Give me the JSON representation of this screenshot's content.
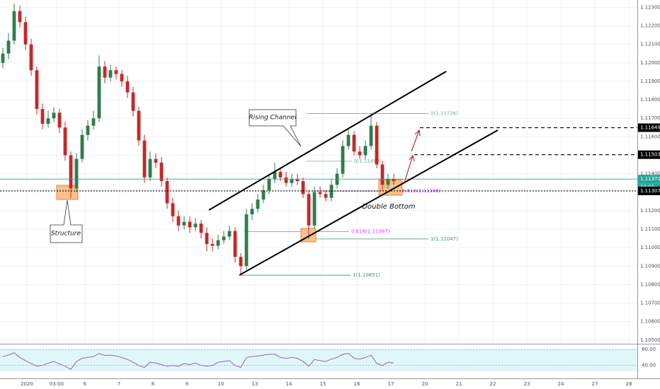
{
  "chart_data": {
    "type": "candlestick",
    "open": [
      1.12,
      1.1205,
      1.1212,
      1.1228,
      1.1222,
      1.121,
      1.1196,
      1.1175,
      1.1167,
      1.117,
      1.1173,
      1.1165,
      1.115,
      1.1132,
      1.1148,
      1.1161,
      1.1166,
      1.117,
      1.1198,
      1.1192,
      1.1196,
      1.1194,
      1.119,
      1.1184,
      1.1174,
      1.1158,
      1.1138,
      1.1148,
      1.1146,
      1.1136,
      1.1124,
      1.1117,
      1.1112,
      1.1114,
      1.1111,
      1.1113,
      1.1108,
      1.1102,
      1.1101,
      1.1104,
      1.1106,
      1.1109,
      1.1095,
      1.109,
      1.1118,
      1.1121,
      1.1126,
      1.1131,
      1.1137,
      1.1141,
      1.1138,
      1.1135,
      1.1137,
      1.1136,
      1.1129,
      1.1112,
      1.113,
      1.1129,
      1.1127,
      1.1134,
      1.114,
      1.1155,
      1.1161,
      1.1152,
      1.115,
      1.1155,
      1.1166,
      1.1145,
      1.1134,
      1.1137
    ],
    "high": [
      1.1208,
      1.1216,
      1.1232,
      1.1231,
      1.1225,
      1.1213,
      1.1198,
      1.1178,
      1.1174,
      1.1176,
      1.1175,
      1.1168,
      1.1152,
      1.1151,
      1.1164,
      1.1169,
      1.1174,
      1.1204,
      1.1201,
      1.1199,
      1.1198,
      1.1196,
      1.1193,
      1.1187,
      1.1176,
      1.1161,
      1.1152,
      1.1151,
      1.1149,
      1.1138,
      1.1127,
      1.112,
      1.1117,
      1.1117,
      1.1116,
      1.1115,
      1.1111,
      1.1105,
      1.1107,
      1.1109,
      1.1112,
      1.1111,
      1.1097,
      1.1121,
      1.1124,
      1.1129,
      1.1134,
      1.114,
      1.1146,
      1.1143,
      1.1141,
      1.114,
      1.114,
      1.1138,
      1.1131,
      1.1133,
      1.1133,
      1.1131,
      1.1137,
      1.1143,
      1.1158,
      1.1164,
      1.1163,
      1.1155,
      1.1158,
      1.11726,
      1.1168,
      1.1147,
      1.114,
      1.114
    ],
    "low": [
      1.1197,
      1.1202,
      1.121,
      1.1219,
      1.1207,
      1.1193,
      1.1172,
      1.1164,
      1.1165,
      1.1168,
      1.1162,
      1.1147,
      1.1127,
      1.113,
      1.1146,
      1.1158,
      1.1164,
      1.1168,
      1.1189,
      1.119,
      1.1191,
      1.1187,
      1.1181,
      1.1171,
      1.1155,
      1.1135,
      1.1136,
      1.1143,
      1.1133,
      1.1121,
      1.1114,
      1.1109,
      1.111,
      1.1108,
      1.1109,
      1.1105,
      1.1098,
      1.1098,
      1.1099,
      1.1102,
      1.1104,
      1.1092,
      1.10851,
      1.1088,
      1.1115,
      1.1119,
      1.1124,
      1.1129,
      1.1135,
      1.1136,
      1.1133,
      1.1133,
      1.1134,
      1.1127,
      1.11047,
      1.111,
      1.1127,
      1.1125,
      1.1125,
      1.1132,
      1.1138,
      1.1153,
      1.115,
      1.1148,
      1.1148,
      1.1153,
      1.1143,
      1.1131,
      1.1132,
      1.1134
    ],
    "close": [
      1.1205,
      1.1212,
      1.1228,
      1.1222,
      1.121,
      1.1196,
      1.1175,
      1.1167,
      1.117,
      1.1173,
      1.1165,
      1.115,
      1.1132,
      1.1148,
      1.1161,
      1.1166,
      1.117,
      1.1198,
      1.1192,
      1.1196,
      1.1194,
      1.119,
      1.1184,
      1.1174,
      1.1158,
      1.1138,
      1.1148,
      1.1146,
      1.1136,
      1.1124,
      1.1117,
      1.1112,
      1.1114,
      1.1111,
      1.1113,
      1.1108,
      1.1102,
      1.1101,
      1.1104,
      1.1106,
      1.1109,
      1.1095,
      1.109,
      1.1118,
      1.1121,
      1.1126,
      1.1131,
      1.1137,
      1.1141,
      1.1138,
      1.1135,
      1.1137,
      1.1136,
      1.1129,
      1.1112,
      1.113,
      1.1129,
      1.1127,
      1.1134,
      1.114,
      1.1155,
      1.1161,
      1.1152,
      1.115,
      1.1155,
      1.1166,
      1.1145,
      1.1134,
      1.1137,
      1.1136
    ],
    "up_color": "#2e7d4f",
    "down_color": "#c62828",
    "xlim": [
      -0.5,
      112
    ],
    "xticks": [
      {
        "value": 4.25,
        "label": "2020"
      },
      {
        "value": 9.5,
        "label": "03:00"
      },
      {
        "value": 14.5,
        "label": "6"
      },
      {
        "value": 20.5,
        "label": "7"
      },
      {
        "value": 26.5,
        "label": "8"
      },
      {
        "value": 32.5,
        "label": "9"
      },
      {
        "value": 38.5,
        "label": "10"
      },
      {
        "value": 44.5,
        "label": "13"
      },
      {
        "value": 50.5,
        "label": "14"
      },
      {
        "value": 56.5,
        "label": "15"
      },
      {
        "value": 62.5,
        "label": "16"
      },
      {
        "value": 68.5,
        "label": "17"
      },
      {
        "value": 74.5,
        "label": "20"
      },
      {
        "value": 80.5,
        "label": "21"
      },
      {
        "value": 86.5,
        "label": "22"
      },
      {
        "value": 92.5,
        "label": "23"
      },
      {
        "value": 98.5,
        "label": "24"
      },
      {
        "value": 104.5,
        "label": "27"
      },
      {
        "value": 110.5,
        "label": "28"
      }
    ],
    "ylim": [
      1.1048,
      1.1234
    ],
    "yticks": [
      {
        "value": 1.123,
        "label": "1.12300"
      },
      {
        "value": 1.122,
        "label": "1.12200"
      },
      {
        "value": 1.121,
        "label": "1.12100"
      },
      {
        "value": 1.12,
        "label": "1.12000"
      },
      {
        "value": 1.119,
        "label": "1.11900"
      },
      {
        "value": 1.118,
        "label": "1.11800"
      },
      {
        "value": 1.117,
        "label": "1.11700"
      },
      {
        "value": 1.116,
        "label": "1.11600"
      },
      {
        "value": 1.115,
        "label": "1.11500"
      },
      {
        "value": 1.114,
        "label": "1.11400"
      },
      {
        "value": 1.113,
        "label": "1.11300"
      },
      {
        "value": 1.112,
        "label": "1.11200"
      },
      {
        "value": 1.111,
        "label": "1.11100"
      },
      {
        "value": 1.11,
        "label": "1.11000"
      },
      {
        "value": 1.109,
        "label": "1.10900"
      },
      {
        "value": 1.108,
        "label": "1.10800"
      },
      {
        "value": 1.107,
        "label": "1.10700"
      },
      {
        "value": 1.106,
        "label": "1.10600"
      },
      {
        "value": 1.105,
        "label": "1.10500"
      }
    ],
    "grid": true,
    "levels": [
      {
        "value": 1.11649,
        "label": "1.11649",
        "style": "dashed",
        "color": "#000000"
      },
      {
        "value": 1.11503,
        "label": "1.11503",
        "style": "dashed",
        "color": "#000000"
      },
      {
        "value": 1.11371,
        "label": "1.11371",
        "style": "solid",
        "color": "#26a69a",
        "sublabel": "19:01"
      },
      {
        "value": 1.11307,
        "label": "1.11307",
        "style": "dotted",
        "color": "#000000"
      }
    ],
    "fibs": [
      {
        "value": 1.11726,
        "label": "0(1.11726)",
        "color": "#7fa89a"
      },
      {
        "value": 1.11468,
        "label": "0(1.11468)",
        "color": "#7fa89a"
      },
      {
        "value": 1.11087,
        "label": "0.618(1.11087)",
        "color": "#e040fb"
      },
      {
        "value": 1.11047,
        "label": "1(1.11047)",
        "color": "#4c8c6c"
      },
      {
        "value": 1.10851,
        "label": "1(1.10851)",
        "color": "#4c8c6c"
      },
      {
        "value": 1.11306,
        "label": "0.618(1.11306)",
        "color": "#e040fb"
      }
    ],
    "annotations": {
      "channel": "Rising Channel",
      "structure": "Structure",
      "pattern": "Double Bottom"
    },
    "indicator": {
      "color": "#9c5fb5",
      "ylim": [
        11,
        91
      ],
      "yticks": [
        {
          "value": 80,
          "label": "80.00"
        },
        {
          "value": 40,
          "label": "40.00"
        }
      ],
      "values": [
        62,
        66,
        72,
        60,
        52,
        45,
        38,
        40,
        46,
        50,
        44,
        38,
        30,
        50,
        58,
        60,
        62,
        70,
        65,
        66,
        64,
        60,
        55,
        48,
        40,
        35,
        48,
        46,
        42,
        38,
        40,
        38,
        45,
        42,
        46,
        40,
        38,
        40,
        48,
        50,
        52,
        40,
        35,
        60,
        62,
        64,
        66,
        68,
        68,
        60,
        58,
        60,
        58,
        50,
        38,
        55,
        52,
        50,
        56,
        60,
        68,
        70,
        58,
        56,
        60,
        66,
        45,
        40,
        48,
        46
      ]
    }
  }
}
